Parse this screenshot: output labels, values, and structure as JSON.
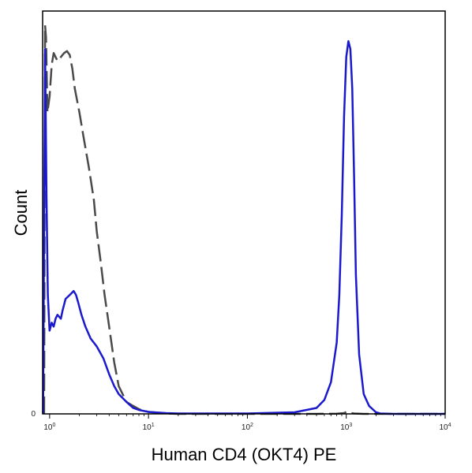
{
  "chart_data": {
    "type": "line",
    "title": "",
    "xlabel": "Human CD4 (OKT4) PE",
    "ylabel": "Count",
    "xscale": "log",
    "xlim": [
      0.85,
      10000
    ],
    "ylim": [
      0,
      100
    ],
    "x_ticks": [
      {
        "base": "10",
        "exp": "0"
      },
      {
        "base": "10",
        "exp": "1"
      },
      {
        "base": "10",
        "exp": "2"
      },
      {
        "base": "10",
        "exp": "3"
      },
      {
        "base": "10",
        "exp": "4"
      }
    ],
    "y_ticks": [
      "0"
    ],
    "grid": false,
    "legend": "none",
    "series": [
      {
        "color": "#4a4a4a",
        "dash": "long-dash",
        "x": [
          0.88,
          0.9,
          0.92,
          0.95,
          1.0,
          1.05,
          1.1,
          1.15,
          1.2,
          1.3,
          1.4,
          1.5,
          1.6,
          1.7,
          1.8,
          2.0,
          2.2,
          2.5,
          2.8,
          3.0,
          3.3,
          3.6,
          4.0,
          4.5,
          5.0,
          6.0,
          7.0,
          8.0,
          9.0,
          10.0,
          12.0,
          15.0,
          20.0,
          100.0,
          500.0,
          800.0,
          950.0,
          1000.0,
          1050.0,
          1200.0,
          1500.0,
          10000.0
        ],
        "y": [
          0,
          98,
          95,
          76,
          80,
          88,
          91,
          90,
          89,
          90,
          91,
          91.5,
          90.5,
          87,
          82,
          76,
          70,
          62,
          54,
          46,
          38,
          30,
          22,
          13,
          7,
          3,
          2,
          1.2,
          0.8,
          0.5,
          0.3,
          0.1,
          0,
          0,
          0,
          0.05,
          0.2,
          0.5,
          0.3,
          0.1,
          0,
          0
        ]
      },
      {
        "color": "#1a1acc",
        "dash": "solid",
        "x": [
          0.86,
          0.9,
          0.93,
          0.96,
          1.0,
          1.05,
          1.1,
          1.15,
          1.2,
          1.3,
          1.35,
          1.45,
          1.6,
          1.75,
          1.85,
          1.95,
          2.1,
          2.3,
          2.6,
          3.0,
          3.5,
          4.0,
          4.5,
          5.0,
          6.0,
          7.0,
          8.0,
          10.0,
          15.0,
          20.0,
          100.0,
          300.0,
          500.0,
          600.0,
          700.0,
          800.0,
          850.0,
          900.0,
          950.0,
          1000.0,
          1050.0,
          1100.0,
          1150.0,
          1200.0,
          1250.0,
          1350.0,
          1500.0,
          1700.0,
          2000.0,
          2200.0,
          3000.0,
          10000.0
        ],
        "y": [
          0,
          92,
          55,
          30,
          21,
          23,
          22,
          24,
          25,
          24,
          26,
          29,
          30,
          31,
          30,
          28,
          25,
          22,
          19,
          17,
          14,
          10,
          7,
          5,
          3,
          1.5,
          1,
          0.5,
          0.2,
          0.1,
          0.1,
          0.4,
          1.5,
          3.5,
          8,
          18,
          30,
          50,
          75,
          90,
          94,
          92,
          82,
          60,
          35,
          15,
          5,
          2,
          0.4,
          0.1,
          0,
          0
        ]
      }
    ]
  }
}
